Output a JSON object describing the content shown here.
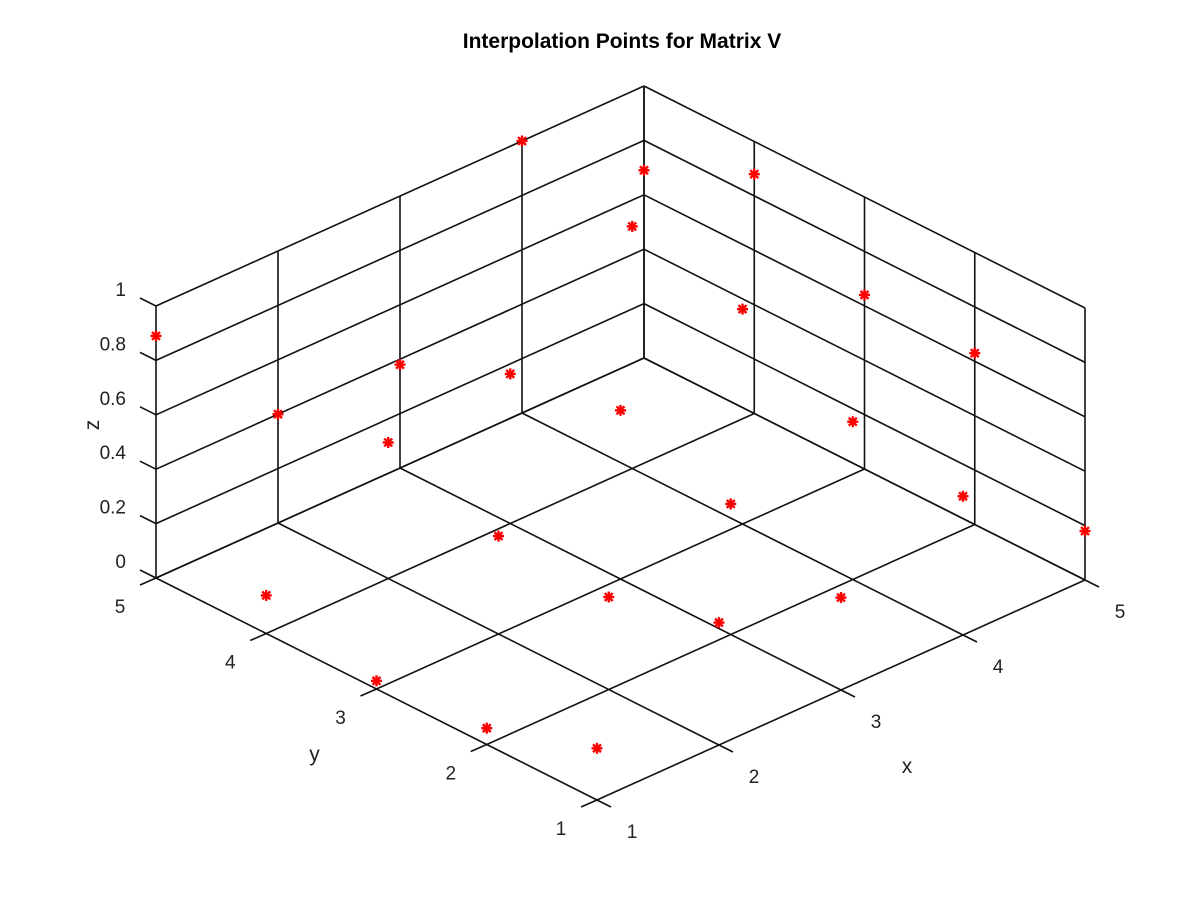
{
  "chart_data": {
    "type": "scatter",
    "title": "Interpolation Points for Matrix V",
    "xlabel": "x",
    "ylabel": "y",
    "zlabel": "z",
    "xlim": [
      1,
      5
    ],
    "ylim": [
      1,
      5
    ],
    "zlim": [
      0,
      1
    ],
    "x_ticks": [
      "1",
      "2",
      "3",
      "4",
      "5"
    ],
    "y_ticks": [
      "1",
      "2",
      "3",
      "4",
      "5"
    ],
    "z_ticks": [
      "0",
      "0.2",
      "0.4",
      "0.6",
      "0.8",
      "1"
    ],
    "grid": true,
    "marker": "*",
    "marker_color": "#ff0000",
    "points": [
      {
        "x": 1,
        "y": 1,
        "z": 0.19
      },
      {
        "x": 1,
        "y": 2,
        "z": 0.06
      },
      {
        "x": 1,
        "y": 3,
        "z": 0.03
      },
      {
        "x": 1,
        "y": 4,
        "z": 0.14
      },
      {
        "x": 1,
        "y": 5,
        "z": 0.89
      },
      {
        "x": 2,
        "y": 1,
        "z": 0.45
      },
      {
        "x": 2,
        "y": 2,
        "z": 0.34
      },
      {
        "x": 2,
        "y": 3,
        "z": 0.36
      },
      {
        "x": 2,
        "y": 4,
        "z": 0.5
      },
      {
        "x": 2,
        "y": 5,
        "z": 0.4
      },
      {
        "x": 3,
        "y": 1,
        "z": 0.34
      },
      {
        "x": 3,
        "y": 2,
        "z": 0.48
      },
      {
        "x": 3,
        "y": 3,
        "z": 0.62
      },
      {
        "x": 3,
        "y": 4,
        "z": 0.55
      },
      {
        "x": 3,
        "y": 5,
        "z": 0.38
      },
      {
        "x": 4,
        "y": 1,
        "z": 0.51
      },
      {
        "x": 4,
        "y": 2,
        "z": 0.58
      },
      {
        "x": 4,
        "y": 3,
        "z": 0.79
      },
      {
        "x": 4,
        "y": 4,
        "z": 0.89
      },
      {
        "x": 4,
        "y": 5,
        "z": 1.0
      },
      {
        "x": 5,
        "y": 1,
        "z": 0.18
      },
      {
        "x": 5,
        "y": 2,
        "z": 0.63
      },
      {
        "x": 5,
        "y": 3,
        "z": 0.64
      },
      {
        "x": 5,
        "y": 4,
        "z": 0.88
      },
      {
        "x": 5,
        "y": 5,
        "z": 0.69
      }
    ]
  }
}
